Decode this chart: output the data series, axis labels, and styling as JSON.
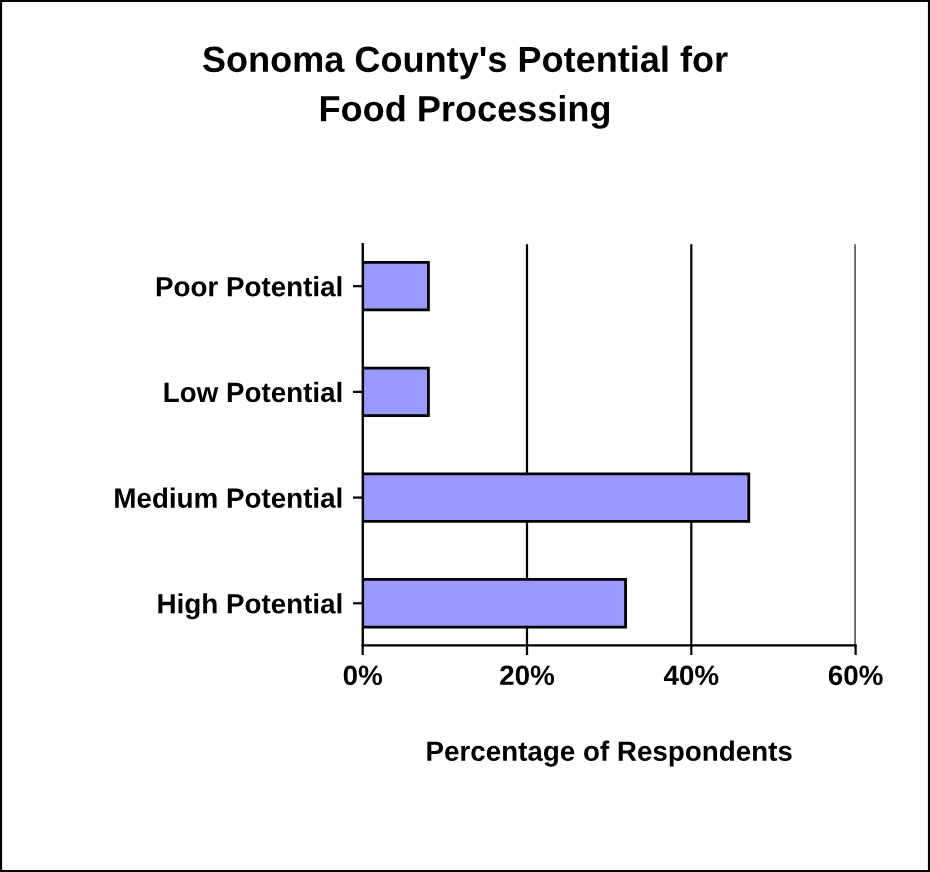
{
  "chart_data": {
    "type": "bar",
    "orientation": "horizontal",
    "title": "Sonoma County's Potential for\nFood Processing",
    "xlabel": "Percentage of Respondents",
    "categories": [
      "Poor Potential",
      "Low Potential",
      "Medium Potential",
      "High Potential"
    ],
    "values": [
      8,
      8,
      47,
      32
    ],
    "color": "#9999ff",
    "xlim": [
      0,
      60
    ],
    "xticks": [
      {
        "value": 0,
        "label": "0%"
      },
      {
        "value": 20,
        "label": "20%"
      },
      {
        "value": 40,
        "label": "40%"
      },
      {
        "value": 60,
        "label": "60%"
      }
    ],
    "grid": "x",
    "legend": false
  }
}
